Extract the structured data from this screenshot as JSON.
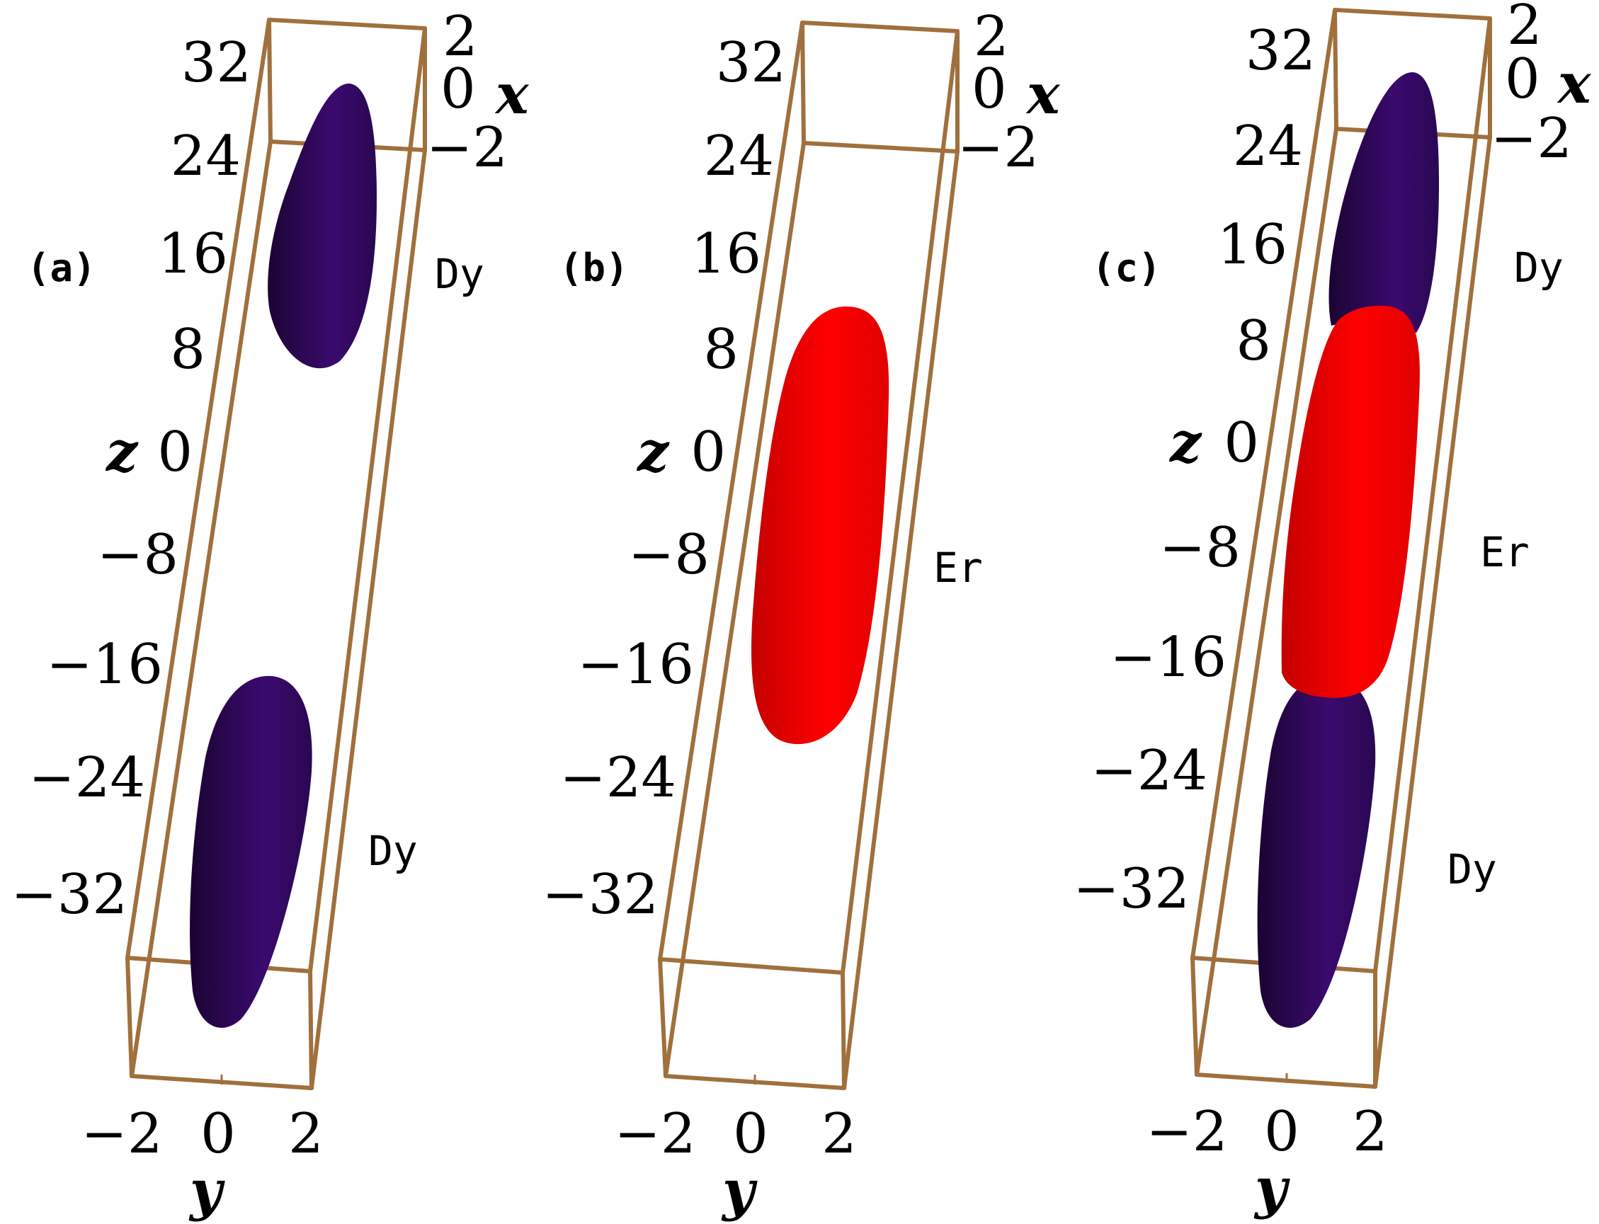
{
  "colors": {
    "dy": "#3a0a6e",
    "er": "#ff0000",
    "box": "#a0703c"
  },
  "axes": {
    "z_label": "z",
    "x_label": "x",
    "y_label": "y",
    "z_ticks": [
      "32",
      "24",
      "16",
      "8",
      "0",
      "−8",
      "−16",
      "−24",
      "−32"
    ],
    "x_ticks": [
      "2",
      "0",
      "−2"
    ],
    "y_ticks": [
      "−2",
      "0",
      "2"
    ]
  },
  "panels": [
    {
      "label": "(a)",
      "species_labels": [
        "Dy",
        "Dy"
      ]
    },
    {
      "label": "(b)",
      "species_labels": [
        "Er"
      ]
    },
    {
      "label": "(c)",
      "species_labels": [
        "Dy",
        "Er",
        "Dy"
      ]
    }
  ]
}
